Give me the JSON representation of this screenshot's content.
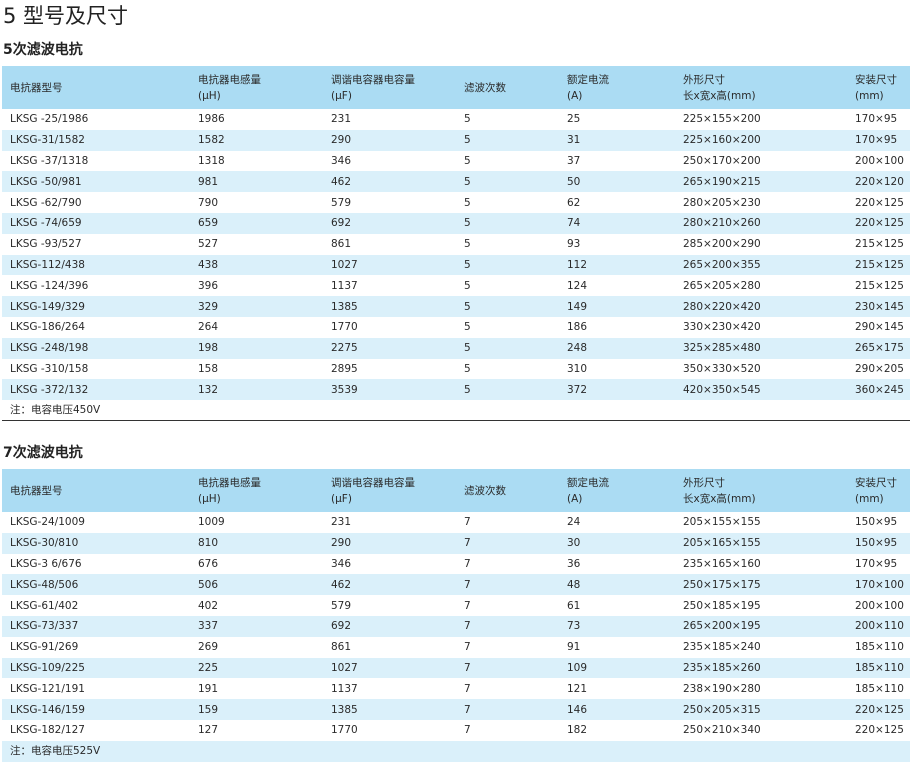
{
  "page_title": "5 型号及尺寸",
  "headers": [
    {
      "l1": "电抗器型号",
      "l2": ""
    },
    {
      "l1": "电抗器电感量",
      "l2": "(μH)"
    },
    {
      "l1": "调谐电容器电容量",
      "l2": "(μF)"
    },
    {
      "l1": "滤波次数",
      "l2": ""
    },
    {
      "l1": "额定电流",
      "l2": "(A)"
    },
    {
      "l1": "外形尺寸",
      "l2": "长x宽x高(mm)"
    },
    {
      "l1": "安装尺寸",
      "l2": "(mm)"
    }
  ],
  "section1": {
    "title": "5次滤波电抗",
    "rows": [
      [
        "LKSG -25/1986",
        "1986",
        "231",
        "5",
        "25",
        "225×155×200",
        "170×95"
      ],
      [
        "LKSG-31/1582",
        "1582",
        "290",
        "5",
        "31",
        "225×160×200",
        "170×95"
      ],
      [
        "LKSG -37/1318",
        "1318",
        "346",
        "5",
        "37",
        "250×170×200",
        "200×100"
      ],
      [
        "LKSG -50/981",
        "981",
        "462",
        "5",
        "50",
        "265×190×215",
        "220×120"
      ],
      [
        "LKSG -62/790",
        "790",
        "579",
        "5",
        "62",
        "280×205×230",
        "220×125"
      ],
      [
        "LKSG -74/659",
        "659",
        "692",
        "5",
        "74",
        "280×210×260",
        "220×125"
      ],
      [
        "LKSG -93/527",
        "527",
        "861",
        "5",
        "93",
        "285×200×290",
        "215×125"
      ],
      [
        "LKSG-112/438",
        "438",
        "1027",
        "5",
        "112",
        "265×200×355",
        "215×125"
      ],
      [
        "LKSG -124/396",
        "396",
        "1137",
        "5",
        "124",
        "265×205×280",
        "215×125"
      ],
      [
        "LKSG-149/329",
        "329",
        "1385",
        "5",
        "149",
        "280×220×420",
        "230×145"
      ],
      [
        "LKSG-186/264",
        "264",
        "1770",
        "5",
        "186",
        "330×230×420",
        "290×145"
      ],
      [
        "LKSG -248/198",
        "198",
        "2275",
        "5",
        "248",
        "325×285×480",
        "265×175"
      ],
      [
        "LKSG -310/158",
        "158",
        "2895",
        "5",
        "310",
        "350×330×520",
        "290×205"
      ],
      [
        "LKSG -372/132",
        "132",
        "3539",
        "5",
        "372",
        "420×350×545",
        "360×245"
      ]
    ],
    "note": "注：电容电压450V"
  },
  "section2": {
    "title": "7次滤波电抗",
    "rows": [
      [
        "LKSG-24/1009",
        "1009",
        "231",
        "7",
        "24",
        "205×155×155",
        "150×95"
      ],
      [
        "LKSG-30/810",
        "810",
        "290",
        "7",
        "30",
        "205×165×155",
        "150×95"
      ],
      [
        "LKSG-3 6/676",
        "676",
        "346",
        "7",
        "36",
        "235×165×160",
        "170×95"
      ],
      [
        "LKSG-48/506",
        "506",
        "462",
        "7",
        "48",
        "250×175×175",
        "170×100"
      ],
      [
        "LKSG-61/402",
        "402",
        "579",
        "7",
        "61",
        "250×185×195",
        "200×100"
      ],
      [
        "LKSG-73/337",
        "337",
        "692",
        "7",
        "73",
        "265×200×195",
        "200×110"
      ],
      [
        "LKSG-91/269",
        "269",
        "861",
        "7",
        "91",
        "235×185×240",
        "185×110"
      ],
      [
        "LKSG-109/225",
        "225",
        "1027",
        "7",
        "109",
        "235×185×260",
        "185×110"
      ],
      [
        "LKSG-121/191",
        "191",
        "1137",
        "7",
        "121",
        "238×190×280",
        "185×110"
      ],
      [
        "LKSG-146/159",
        "159",
        "1385",
        "7",
        "146",
        "250×205×315",
        "220×125"
      ],
      [
        "LKSG-182/127",
        "127",
        "1770",
        "7",
        "182",
        "250×210×340",
        "220×125"
      ]
    ],
    "note": "注：电容电压525V"
  },
  "colors": {
    "header_bg": "#abdcf3",
    "stripe_bg": "#daf0fa"
  }
}
